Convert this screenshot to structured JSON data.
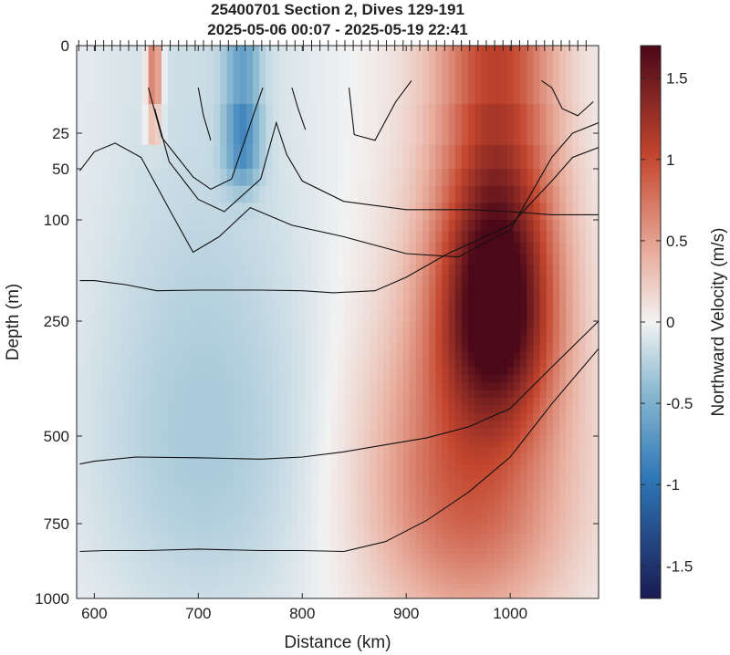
{
  "chart_data": {
    "type": "heatmap",
    "title": "25400701 Section 2, Dives 129-191",
    "subtitle": "2025-05-06 00:07 - 2025-05-19 22:41",
    "xlabel": "Distance (km)",
    "ylabel": "Depth (m)",
    "colorbar_label": "Northward Velocity (m/s)",
    "xlim": [
      583,
      1085
    ],
    "ylim": [
      0,
      1000
    ],
    "y_scale": "stretched (shallow depths expanded)",
    "x_ticks": [
      600,
      700,
      800,
      900,
      1000
    ],
    "y_ticks": [
      0,
      25,
      50,
      100,
      250,
      500,
      750,
      1000
    ],
    "y_tick_labels": [
      "0",
      "25",
      "50",
      "100",
      "250",
      "500",
      "750",
      "1000"
    ],
    "colorbar_range": [
      -1.7,
      1.7
    ],
    "colorbar_ticks": [
      -1.5,
      -1,
      -0.5,
      0,
      0.5,
      1,
      1.5
    ],
    "colorbar_tick_labels": [
      "-1.5",
      "-1",
      "-0.5",
      "0",
      "0.5",
      "1",
      "1.5"
    ],
    "colormap": {
      "negative_end": "#1a1a52",
      "mid_blue": "#2f78b8",
      "light_blue": "#8fbcd2",
      "neutral": "#f2f2f2",
      "light_red": "#e9b0a0",
      "mid_red": "#c4462e",
      "positive_end": "#4a0818"
    },
    "dive_marks_at_surface": true,
    "velocity_features": [
      {
        "x_range": [
          930,
          1045
        ],
        "depth_range": [
          0,
          400
        ],
        "peak_velocity": 1.7
      },
      {
        "x_range": [
          860,
          1060
        ],
        "depth_range": [
          250,
          1000
        ],
        "peak_velocity": 0.9
      },
      {
        "x_range": [
          650,
          665
        ],
        "depth_range": [
          0,
          25
        ],
        "peak_velocity": 0.9
      },
      {
        "x_range": [
          725,
          760
        ],
        "depth_range": [
          0,
          60
        ],
        "peak_velocity": -0.7
      },
      {
        "x_range": [
          583,
          830
        ],
        "depth_range": [
          0,
          1000
        ],
        "peak_velocity": -0.3
      }
    ],
    "contours": [
      {
        "points": [
          [
            652,
            12
          ],
          [
            665,
            28
          ],
          [
            695,
            58
          ],
          [
            712,
            70
          ],
          [
            732,
            60
          ],
          [
            762,
            12
          ]
        ]
      },
      {
        "points": [
          [
            658,
            18
          ],
          [
            672,
            45
          ],
          [
            700,
            80
          ],
          [
            725,
            92
          ],
          [
            760,
            60
          ],
          [
            775,
            22
          ],
          [
            785,
            40
          ],
          [
            800,
            62
          ],
          [
            840,
            82
          ],
          [
            900,
            90
          ],
          [
            960,
            90
          ],
          [
            1000,
            92
          ],
          [
            1040,
            95
          ],
          [
            1085,
            95
          ]
        ]
      },
      {
        "points": [
          [
            586,
            52
          ],
          [
            600,
            38
          ],
          [
            620,
            32
          ],
          [
            645,
            42
          ],
          [
            675,
            95
          ],
          [
            695,
            148
          ],
          [
            720,
            125
          ],
          [
            750,
            88
          ],
          [
            790,
            108
          ],
          [
            840,
            125
          ],
          [
            900,
            150
          ],
          [
            950,
            155
          ],
          [
            1000,
            115
          ],
          [
            1040,
            42
          ],
          [
            1060,
            25
          ],
          [
            1085,
            22
          ]
        ]
      },
      {
        "points": [
          [
            586,
            190
          ],
          [
            600,
            190
          ],
          [
            630,
            196
          ],
          [
            660,
            205
          ],
          [
            700,
            204
          ],
          [
            760,
            204
          ],
          [
            800,
            205
          ],
          [
            830,
            208
          ],
          [
            870,
            205
          ],
          [
            900,
            185
          ],
          [
            940,
            150
          ],
          [
            1000,
            108
          ],
          [
            1040,
            62
          ],
          [
            1060,
            42
          ],
          [
            1085,
            35
          ]
        ]
      },
      {
        "points": [
          [
            586,
            580
          ],
          [
            600,
            572
          ],
          [
            640,
            560
          ],
          [
            700,
            562
          ],
          [
            760,
            566
          ],
          [
            800,
            560
          ],
          [
            840,
            545
          ],
          [
            880,
            525
          ],
          [
            920,
            505
          ],
          [
            960,
            480
          ],
          [
            1000,
            440
          ],
          [
            1040,
            350
          ],
          [
            1085,
            250
          ]
        ]
      },
      {
        "points": [
          [
            586,
            843
          ],
          [
            610,
            840
          ],
          [
            650,
            840
          ],
          [
            700,
            835
          ],
          [
            760,
            840
          ],
          [
            800,
            840
          ],
          [
            840,
            843
          ],
          [
            880,
            810
          ],
          [
            920,
            740
          ],
          [
            960,
            660
          ],
          [
            1000,
            560
          ],
          [
            1040,
            430
          ],
          [
            1085,
            310
          ]
        ]
      },
      {
        "points": [
          [
            700,
            12
          ],
          [
            705,
            20
          ],
          [
            712,
            30
          ]
        ]
      },
      {
        "points": [
          [
            790,
            12
          ],
          [
            796,
            18
          ],
          [
            803,
            24
          ]
        ]
      },
      {
        "points": [
          [
            845,
            12
          ],
          [
            850,
            26
          ],
          [
            870,
            30
          ],
          [
            890,
            16
          ],
          [
            905,
            10
          ]
        ]
      },
      {
        "points": [
          [
            1030,
            10
          ],
          [
            1040,
            12
          ],
          [
            1050,
            18
          ],
          [
            1065,
            20
          ],
          [
            1080,
            16
          ]
        ]
      }
    ]
  }
}
